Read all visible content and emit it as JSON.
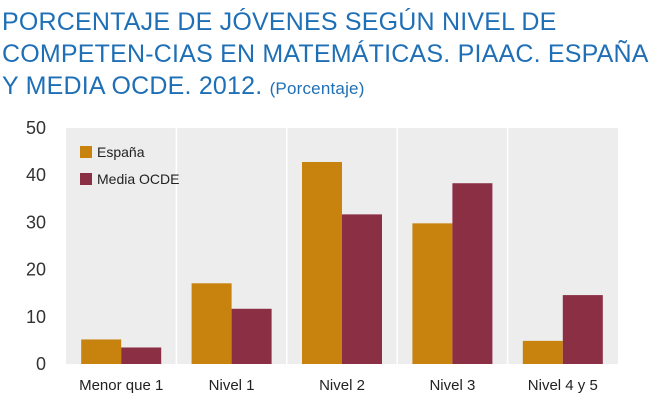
{
  "title_main": "PORCENTAJE DE JÓVENES SEGÚN NIVEL DE COMPETEN-CIAS EN MATEMÁTICAS. PIAAC. ESPAÑA Y MEDIA OCDE. 2012.",
  "title_sub": "(Porcentaje)",
  "chart_data": {
    "type": "bar",
    "categories": [
      "Menor que 1",
      "Nivel 1",
      "Nivel 2",
      "Nivel 3",
      "Nivel 4 y 5"
    ],
    "series": [
      {
        "name": "España",
        "values": [
          5.2,
          17.1,
          42.8,
          29.8,
          4.9
        ]
      },
      {
        "name": "Media OCDE",
        "values": [
          3.5,
          11.7,
          31.7,
          38.3,
          14.6
        ]
      }
    ],
    "ylim": [
      0,
      50
    ],
    "yticks": [
      0,
      10,
      20,
      30,
      40,
      50
    ],
    "grid": true,
    "legend_position": "top-left",
    "colors": {
      "España": "#c8830f",
      "Media OCDE": "#8b2f45",
      "plot_bg": "#ededed",
      "title": "#1f6fb6"
    }
  }
}
